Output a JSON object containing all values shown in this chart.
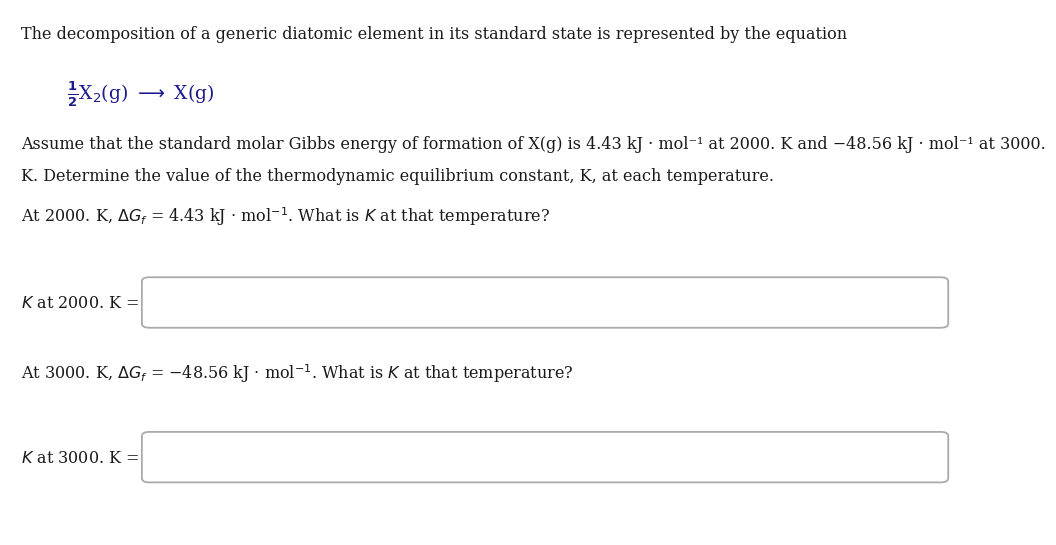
{
  "bg_color": "#ffffff",
  "dark_color": "#1a1a1a",
  "equation_color": "#1a1a8c",
  "box_edge_color": "#aaaaaa",
  "title_line": "The decomposition of a generic diatomic element in its standard state is represented by the equation",
  "para_line1": "Assume that the standard molar Gibbs energy of formation of X(g) is 4.43 kJ · mol⁻¹ at 2000. K and −48.56 kJ · mol⁻¹ at 3000.",
  "para_line2": "K. Determine the value of the thermodynamic equilibrium constant, K, at each temperature.",
  "q1_prefix": "At 2000. K, ",
  "q1_suffix": " = 4.43 kJ · mol⁻¹. What is K at that temperature?",
  "q2_prefix": "At 3000. K, ",
  "q2_suffix": " = −48.56 kJ · mol⁻¹. What is K at that temperature?",
  "label1": "K at 2000. K =",
  "label2": "K at 3000. K =",
  "fs": 11.5,
  "fs_eq": 13.5
}
